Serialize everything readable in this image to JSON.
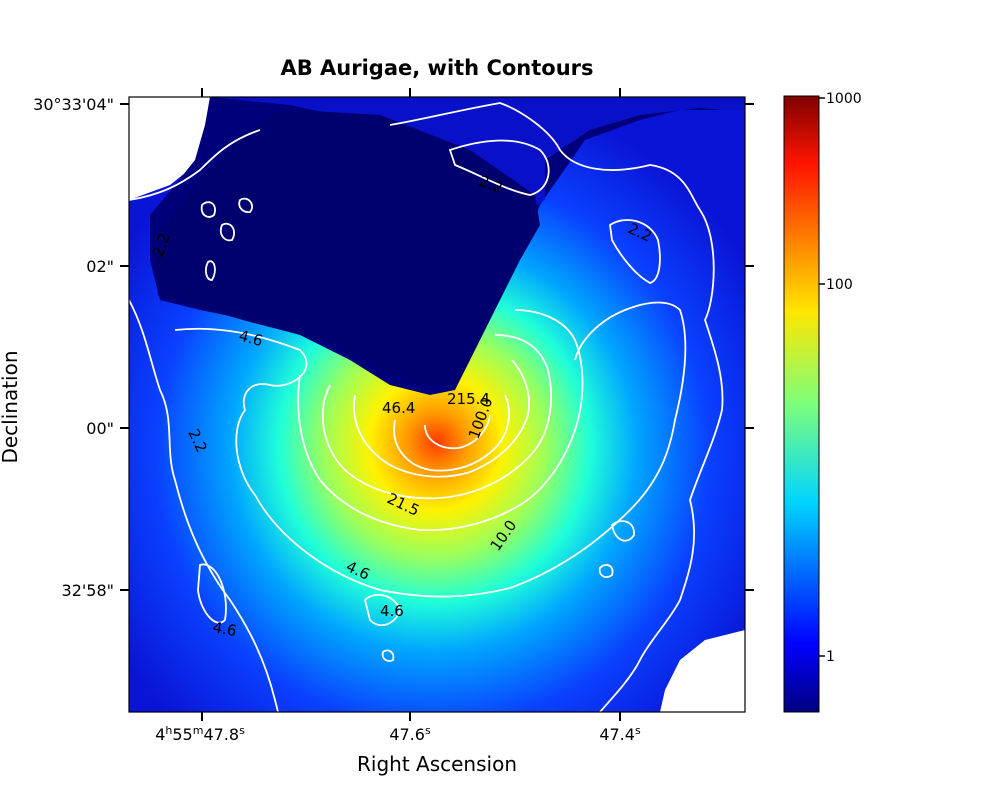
{
  "chart_data": {
    "type": "heatmap",
    "title": "AB Aurigae, with Contours",
    "xlabel": "Right Ascension",
    "ylabel": "Declination",
    "x_ticks": [
      {
        "h": "4",
        "m": "55",
        "s": "47.8",
        "suffix": "s"
      },
      {
        "s": "47.6",
        "suffix": "s"
      },
      {
        "s": "47.4",
        "suffix": "s"
      }
    ],
    "y_ticks": [
      "30°33'04\"",
      "02\"",
      "00\"",
      "32'58\""
    ],
    "colorbar": {
      "colormap": "jet",
      "scale": "log",
      "range": [
        0.7,
        1000
      ],
      "ticks": [
        "1000",
        "100",
        "1"
      ]
    },
    "contour_levels": [
      "2.2",
      "4.6",
      "10.0",
      "21.5",
      "46.4",
      "100.0",
      "215.4"
    ],
    "contour_labels": [
      "2.2",
      "2.2",
      "2.2",
      "2.2",
      "4.6",
      "4.6",
      "4.6",
      "4.6",
      "46.4",
      "215.4",
      "100.0",
      "21.5",
      "10.0"
    ],
    "features": {
      "occulted_wedge": "dark mask region upper-left",
      "peak_region": "bright core near center (~300-600)",
      "grid": false
    }
  }
}
